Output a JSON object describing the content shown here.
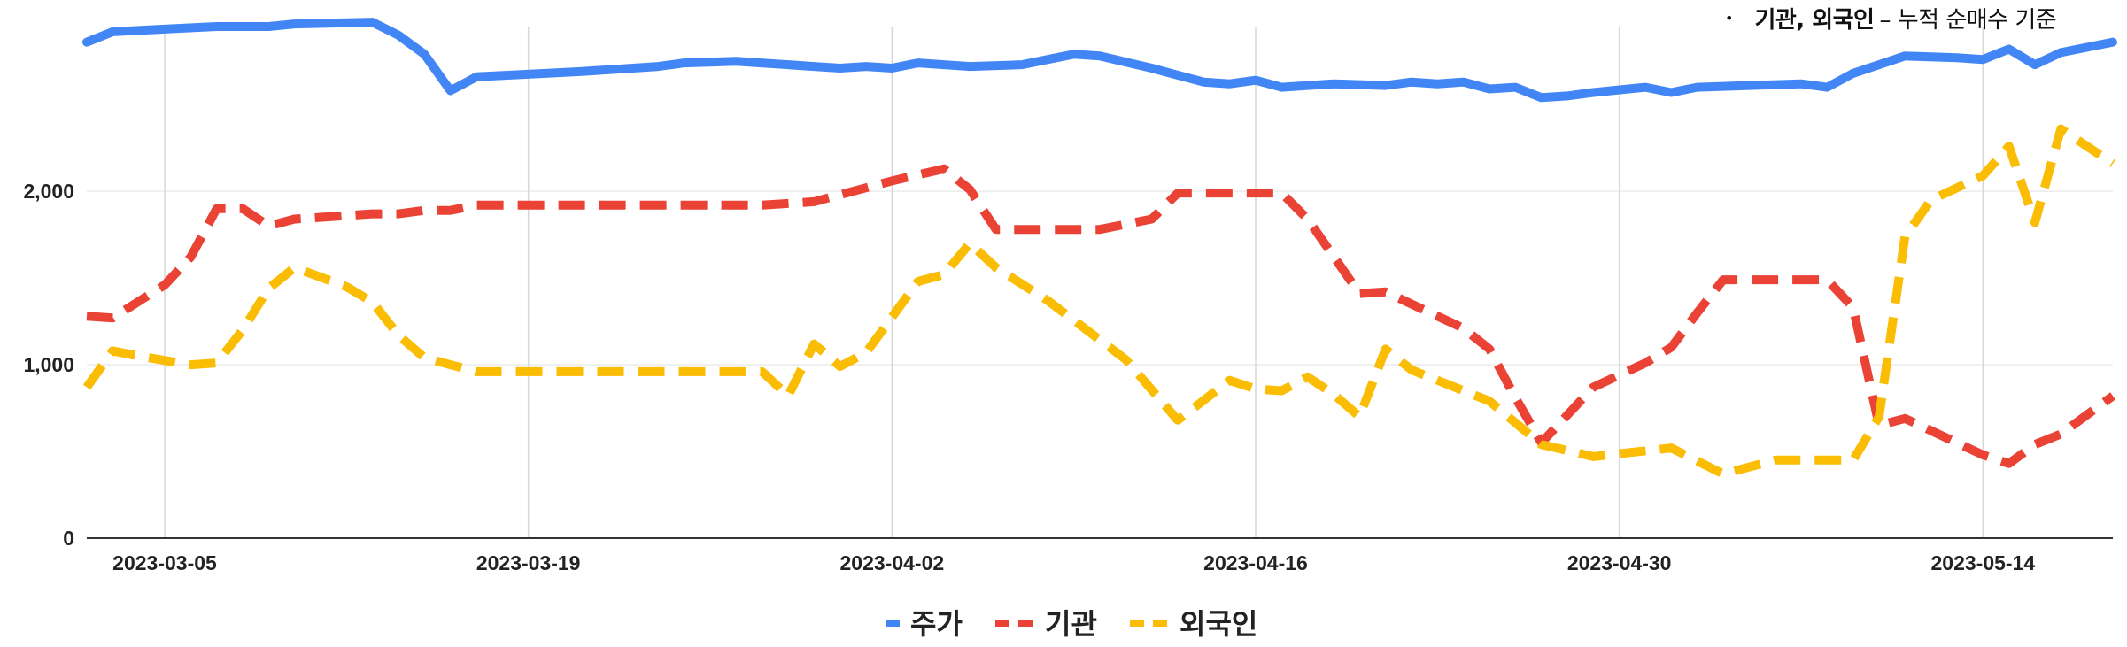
{
  "note": {
    "bullet": "•",
    "strong": "기관, 외국인",
    "rest": "– 누적 순매수 기준"
  },
  "chart_data": {
    "type": "line",
    "title": "",
    "xlabel": "",
    "ylabel": "",
    "ylim": [
      0,
      2950
    ],
    "y_ticks": [
      0,
      1000,
      2000
    ],
    "y_tick_labels": [
      "0",
      "1,000",
      "2,000"
    ],
    "x_tick_labels": [
      "2023-03-05",
      "2023-03-19",
      "2023-04-02",
      "2023-04-16",
      "2023-04-30",
      "2023-05-14"
    ],
    "x_range": [
      "2023-03-02",
      "2023-05-19"
    ],
    "grid": "vertical and horizontal",
    "legend_position": "bottom",
    "series": [
      {
        "name": "주가",
        "color": "#4285f4",
        "dash": "solid",
        "points": [
          [
            "2023-03-02",
            2860
          ],
          [
            "2023-03-03",
            2920
          ],
          [
            "2023-03-05",
            2935
          ],
          [
            "2023-03-07",
            2950
          ],
          [
            "2023-03-09",
            2950
          ],
          [
            "2023-03-10",
            2965
          ],
          [
            "2023-03-13",
            2975
          ],
          [
            "2023-03-14",
            2900
          ],
          [
            "2023-03-15",
            2790
          ],
          [
            "2023-03-16",
            2580
          ],
          [
            "2023-03-17",
            2660
          ],
          [
            "2023-03-21",
            2690
          ],
          [
            "2023-03-24",
            2720
          ],
          [
            "2023-03-25",
            2740
          ],
          [
            "2023-03-27",
            2750
          ],
          [
            "2023-03-30",
            2720
          ],
          [
            "2023-03-31",
            2710
          ],
          [
            "2023-04-01",
            2720
          ],
          [
            "2023-04-02",
            2710
          ],
          [
            "2023-04-03",
            2740
          ],
          [
            "2023-04-05",
            2720
          ],
          [
            "2023-04-07",
            2730
          ],
          [
            "2023-04-08",
            2760
          ],
          [
            "2023-04-09",
            2790
          ],
          [
            "2023-04-10",
            2780
          ],
          [
            "2023-04-12",
            2710
          ],
          [
            "2023-04-13",
            2670
          ],
          [
            "2023-04-14",
            2630
          ],
          [
            "2023-04-15",
            2620
          ],
          [
            "2023-04-16",
            2640
          ],
          [
            "2023-04-17",
            2600
          ],
          [
            "2023-04-18",
            2610
          ],
          [
            "2023-04-19",
            2620
          ],
          [
            "2023-04-21",
            2610
          ],
          [
            "2023-04-22",
            2630
          ],
          [
            "2023-04-23",
            2620
          ],
          [
            "2023-04-24",
            2630
          ],
          [
            "2023-04-25",
            2590
          ],
          [
            "2023-04-26",
            2600
          ],
          [
            "2023-04-27",
            2540
          ],
          [
            "2023-04-28",
            2550
          ],
          [
            "2023-04-29",
            2570
          ],
          [
            "2023-05-01",
            2600
          ],
          [
            "2023-05-02",
            2570
          ],
          [
            "2023-05-03",
            2600
          ],
          [
            "2023-05-05",
            2610
          ],
          [
            "2023-05-07",
            2620
          ],
          [
            "2023-05-08",
            2600
          ],
          [
            "2023-05-09",
            2680
          ],
          [
            "2023-05-11",
            2780
          ],
          [
            "2023-05-13",
            2770
          ],
          [
            "2023-05-14",
            2760
          ],
          [
            "2023-05-15",
            2820
          ],
          [
            "2023-05-16",
            2730
          ],
          [
            "2023-05-17",
            2800
          ],
          [
            "2023-05-19",
            2860
          ]
        ]
      },
      {
        "name": "기관",
        "color": "#ea4335",
        "dash": "dashed",
        "points": [
          [
            "2023-03-02",
            1280
          ],
          [
            "2023-03-03",
            1270
          ],
          [
            "2023-03-05",
            1460
          ],
          [
            "2023-03-06",
            1620
          ],
          [
            "2023-03-07",
            1900
          ],
          [
            "2023-03-08",
            1900
          ],
          [
            "2023-03-09",
            1800
          ],
          [
            "2023-03-10",
            1840
          ],
          [
            "2023-03-13",
            1870
          ],
          [
            "2023-03-14",
            1870
          ],
          [
            "2023-03-15",
            1890
          ],
          [
            "2023-03-16",
            1890
          ],
          [
            "2023-03-17",
            1920
          ],
          [
            "2023-03-20",
            1920
          ],
          [
            "2023-03-27",
            1920
          ],
          [
            "2023-03-28",
            1920
          ],
          [
            "2023-03-30",
            1940
          ],
          [
            "2023-04-02",
            2060
          ],
          [
            "2023-04-04",
            2130
          ],
          [
            "2023-04-05",
            2010
          ],
          [
            "2023-04-06",
            1780
          ],
          [
            "2023-04-10",
            1780
          ],
          [
            "2023-04-12",
            1840
          ],
          [
            "2023-04-13",
            1990
          ],
          [
            "2023-04-16",
            1990
          ],
          [
            "2023-04-17",
            1990
          ],
          [
            "2023-04-18",
            1840
          ],
          [
            "2023-04-20",
            1410
          ],
          [
            "2023-04-21",
            1420
          ],
          [
            "2023-04-24",
            1210
          ],
          [
            "2023-04-25",
            1090
          ],
          [
            "2023-04-26",
            810
          ],
          [
            "2023-04-27",
            550
          ],
          [
            "2023-04-29",
            870
          ],
          [
            "2023-05-01",
            1010
          ],
          [
            "2023-05-02",
            1100
          ],
          [
            "2023-05-03",
            1300
          ],
          [
            "2023-05-04",
            1490
          ],
          [
            "2023-05-08",
            1490
          ],
          [
            "2023-05-09",
            1330
          ],
          [
            "2023-05-10",
            650
          ],
          [
            "2023-05-11",
            690
          ],
          [
            "2023-05-14",
            480
          ],
          [
            "2023-05-15",
            430
          ],
          [
            "2023-05-16",
            540
          ],
          [
            "2023-05-17",
            600
          ],
          [
            "2023-05-19",
            820
          ]
        ]
      },
      {
        "name": "외국인",
        "color": "#fbbc04",
        "dash": "dashed",
        "points": [
          [
            "2023-03-02",
            870
          ],
          [
            "2023-03-03",
            1080
          ],
          [
            "2023-03-04",
            1050
          ],
          [
            "2023-03-06",
            1000
          ],
          [
            "2023-03-07",
            1010
          ],
          [
            "2023-03-08",
            1200
          ],
          [
            "2023-03-09",
            1440
          ],
          [
            "2023-03-10",
            1560
          ],
          [
            "2023-03-12",
            1450
          ],
          [
            "2023-03-13",
            1360
          ],
          [
            "2023-03-14",
            1170
          ],
          [
            "2023-03-15",
            1040
          ],
          [
            "2023-03-17",
            960
          ],
          [
            "2023-03-21",
            960
          ],
          [
            "2023-03-25",
            960
          ],
          [
            "2023-03-28",
            960
          ],
          [
            "2023-03-29",
            820
          ],
          [
            "2023-03-30",
            1120
          ],
          [
            "2023-03-31",
            990
          ],
          [
            "2023-04-01",
            1070
          ],
          [
            "2023-04-03",
            1480
          ],
          [
            "2023-04-04",
            1520
          ],
          [
            "2023-04-05",
            1700
          ],
          [
            "2023-04-06",
            1560
          ],
          [
            "2023-04-08",
            1370
          ],
          [
            "2023-04-11",
            1030
          ],
          [
            "2023-04-13",
            680
          ],
          [
            "2023-04-15",
            910
          ],
          [
            "2023-04-16",
            860
          ],
          [
            "2023-04-17",
            850
          ],
          [
            "2023-04-18",
            930
          ],
          [
            "2023-04-19",
            830
          ],
          [
            "2023-04-20",
            700
          ],
          [
            "2023-04-21",
            1090
          ],
          [
            "2023-04-22",
            970
          ],
          [
            "2023-04-25",
            790
          ],
          [
            "2023-04-27",
            540
          ],
          [
            "2023-04-29",
            470
          ],
          [
            "2023-05-02",
            520
          ],
          [
            "2023-05-04",
            370
          ],
          [
            "2023-05-06",
            450
          ],
          [
            "2023-05-09",
            450
          ],
          [
            "2023-05-10",
            700
          ],
          [
            "2023-05-11",
            1740
          ],
          [
            "2023-05-12",
            1950
          ],
          [
            "2023-05-14",
            2090
          ],
          [
            "2023-05-15",
            2260
          ],
          [
            "2023-05-16",
            1820
          ],
          [
            "2023-05-17",
            2360
          ],
          [
            "2023-05-19",
            2160
          ]
        ]
      }
    ]
  }
}
